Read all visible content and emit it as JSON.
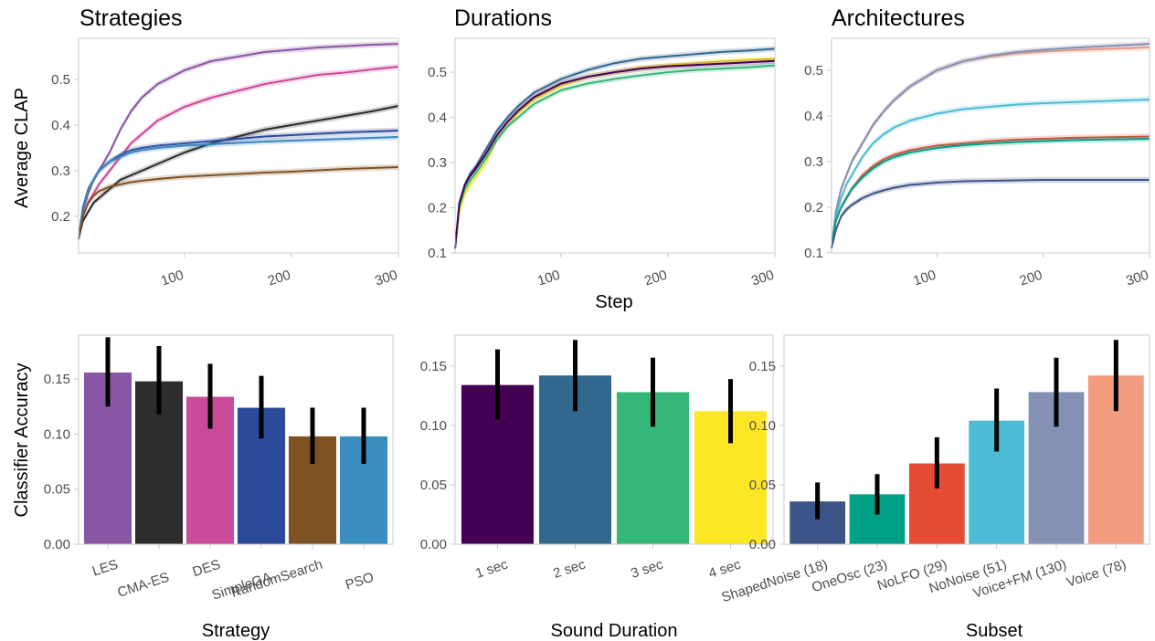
{
  "chart_data": [
    {
      "type": "line",
      "title": "Strategies",
      "ylabel": "Average CLAP",
      "xlabel": "",
      "xlim": [
        1,
        300
      ],
      "ylim": [
        0.12,
        0.59
      ],
      "xticks": [
        100,
        200,
        300
      ],
      "yticks": [
        0.2,
        0.3,
        0.4,
        0.5
      ],
      "legend": "none",
      "x": [
        1,
        5,
        10,
        15,
        20,
        30,
        40,
        50,
        60,
        75,
        100,
        125,
        150,
        175,
        200,
        225,
        250,
        275,
        300
      ],
      "series": [
        {
          "color": "#8b55a5",
          "values": [
            0.15,
            0.21,
            0.25,
            0.28,
            0.3,
            0.34,
            0.39,
            0.43,
            0.46,
            0.49,
            0.52,
            0.54,
            0.55,
            0.56,
            0.565,
            0.57,
            0.573,
            0.576,
            0.578
          ]
        },
        {
          "color": "#cc4a9a",
          "values": [
            0.15,
            0.2,
            0.23,
            0.25,
            0.27,
            0.3,
            0.33,
            0.36,
            0.38,
            0.41,
            0.44,
            0.46,
            0.475,
            0.49,
            0.5,
            0.51,
            0.515,
            0.522,
            0.528
          ]
        },
        {
          "color": "#2b2b2b",
          "values": [
            0.15,
            0.19,
            0.21,
            0.23,
            0.24,
            0.26,
            0.28,
            0.29,
            0.3,
            0.315,
            0.34,
            0.36,
            0.375,
            0.39,
            0.4,
            0.41,
            0.42,
            0.43,
            0.442
          ]
        },
        {
          "color": "#2c4a9a",
          "values": [
            0.15,
            0.22,
            0.26,
            0.28,
            0.3,
            0.32,
            0.335,
            0.345,
            0.35,
            0.355,
            0.36,
            0.365,
            0.37,
            0.375,
            0.378,
            0.381,
            0.384,
            0.386,
            0.388
          ]
        },
        {
          "color": "#3a86bf",
          "values": [
            0.15,
            0.22,
            0.26,
            0.28,
            0.3,
            0.32,
            0.33,
            0.34,
            0.345,
            0.35,
            0.355,
            0.358,
            0.361,
            0.364,
            0.366,
            0.368,
            0.37,
            0.372,
            0.374
          ]
        },
        {
          "color": "#7e5222",
          "values": [
            0.15,
            0.2,
            0.23,
            0.245,
            0.255,
            0.265,
            0.27,
            0.275,
            0.278,
            0.282,
            0.287,
            0.29,
            0.293,
            0.296,
            0.298,
            0.301,
            0.304,
            0.306,
            0.308
          ]
        }
      ]
    },
    {
      "type": "line",
      "title": "Durations",
      "ylabel": "",
      "xlabel": "Step",
      "xlim": [
        1,
        300
      ],
      "ylim": [
        0.1,
        0.575
      ],
      "xticks": [
        100,
        200,
        300
      ],
      "yticks": [
        0.1,
        0.2,
        0.3,
        0.4,
        0.5
      ],
      "legend": "none",
      "x": [
        1,
        5,
        10,
        15,
        20,
        30,
        40,
        50,
        60,
        75,
        100,
        125,
        150,
        175,
        200,
        225,
        250,
        275,
        300
      ],
      "series": [
        {
          "color": "#fde725",
          "values": [
            0.11,
            0.19,
            0.23,
            0.25,
            0.265,
            0.3,
            0.35,
            0.38,
            0.41,
            0.44,
            0.47,
            0.49,
            0.5,
            0.51,
            0.515,
            0.52,
            0.525,
            0.528,
            0.53
          ]
        },
        {
          "color": "#35b779",
          "values": [
            0.11,
            0.2,
            0.24,
            0.26,
            0.275,
            0.31,
            0.35,
            0.38,
            0.4,
            0.43,
            0.46,
            0.475,
            0.485,
            0.493,
            0.5,
            0.505,
            0.508,
            0.511,
            0.515
          ]
        },
        {
          "color": "#31688e",
          "values": [
            0.11,
            0.21,
            0.25,
            0.275,
            0.29,
            0.33,
            0.37,
            0.4,
            0.425,
            0.455,
            0.485,
            0.505,
            0.52,
            0.53,
            0.535,
            0.54,
            0.545,
            0.548,
            0.552
          ]
        },
        {
          "color": "#440154",
          "values": [
            0.11,
            0.21,
            0.25,
            0.27,
            0.285,
            0.32,
            0.36,
            0.39,
            0.415,
            0.445,
            0.475,
            0.49,
            0.5,
            0.508,
            0.513,
            0.516,
            0.519,
            0.522,
            0.525
          ]
        }
      ]
    },
    {
      "type": "line",
      "title": "Architectures",
      "ylabel": "",
      "xlabel": "",
      "xlim": [
        1,
        300
      ],
      "ylim": [
        0.1,
        0.57
      ],
      "xticks": [
        100,
        200,
        300
      ],
      "yticks": [
        0.1,
        0.2,
        0.3,
        0.4,
        0.5
      ],
      "legend": "none",
      "x": [
        1,
        5,
        10,
        15,
        20,
        30,
        40,
        50,
        60,
        75,
        100,
        125,
        150,
        175,
        200,
        225,
        250,
        275,
        300
      ],
      "series": [
        {
          "color": "#f39b7f",
          "values": [
            0.11,
            0.19,
            0.24,
            0.27,
            0.3,
            0.34,
            0.38,
            0.41,
            0.435,
            0.465,
            0.5,
            0.52,
            0.53,
            0.537,
            0.541,
            0.544,
            0.546,
            0.548,
            0.55
          ]
        },
        {
          "color": "#8491b4",
          "values": [
            0.11,
            0.19,
            0.24,
            0.27,
            0.3,
            0.34,
            0.38,
            0.41,
            0.435,
            0.465,
            0.5,
            0.52,
            0.532,
            0.54,
            0.545,
            0.549,
            0.552,
            0.555,
            0.558
          ]
        },
        {
          "color": "#4dbbd5",
          "values": [
            0.11,
            0.18,
            0.22,
            0.25,
            0.27,
            0.31,
            0.34,
            0.36,
            0.375,
            0.39,
            0.405,
            0.415,
            0.42,
            0.425,
            0.428,
            0.43,
            0.432,
            0.434,
            0.436
          ]
        },
        {
          "color": "#e64b35",
          "values": [
            0.11,
            0.17,
            0.2,
            0.22,
            0.24,
            0.27,
            0.29,
            0.305,
            0.315,
            0.325,
            0.335,
            0.34,
            0.345,
            0.348,
            0.35,
            0.352,
            0.353,
            0.354,
            0.355
          ]
        },
        {
          "color": "#00a087",
          "values": [
            0.11,
            0.17,
            0.2,
            0.22,
            0.24,
            0.265,
            0.285,
            0.3,
            0.31,
            0.32,
            0.33,
            0.336,
            0.34,
            0.343,
            0.345,
            0.347,
            0.348,
            0.349,
            0.35
          ]
        },
        {
          "color": "#3c5488",
          "values": [
            0.11,
            0.15,
            0.18,
            0.195,
            0.205,
            0.22,
            0.23,
            0.237,
            0.243,
            0.249,
            0.254,
            0.257,
            0.258,
            0.259,
            0.26,
            0.26,
            0.26,
            0.26,
            0.26
          ]
        }
      ]
    },
    {
      "type": "bar",
      "title": "",
      "xlabel": "Strategy",
      "ylabel": "Classifier Accuracy",
      "ylim": [
        0,
        0.19
      ],
      "yticks": [
        "0.00",
        "0.05",
        "0.10",
        "0.15"
      ],
      "categories": [
        "LES",
        "CMA-ES",
        "DES",
        "SimpleGA",
        "RandomSearch",
        "PSO"
      ],
      "values": [
        0.156,
        0.148,
        0.134,
        0.124,
        0.098,
        0.098
      ],
      "errors": [
        [
          0.125,
          0.188
        ],
        [
          0.118,
          0.18
        ],
        [
          0.105,
          0.164
        ],
        [
          0.096,
          0.153
        ],
        [
          0.073,
          0.124
        ],
        [
          0.073,
          0.124
        ]
      ],
      "colors": [
        "#8b55a5",
        "#2f2c2e",
        "#cc4a9a",
        "#2c4a9a",
        "#7e5222",
        "#3a8ebf"
      ]
    },
    {
      "type": "bar",
      "title": "",
      "xlabel": "Sound Duration",
      "ylabel": "",
      "ylim": [
        0,
        0.176
      ],
      "yticks": [
        "0.00",
        "0.05",
        "0.10",
        "0.15"
      ],
      "categories": [
        "1 sec",
        "2 sec",
        "3 sec",
        "4 sec"
      ],
      "values": [
        0.134,
        0.142,
        0.128,
        0.112
      ],
      "errors": [
        [
          0.105,
          0.164
        ],
        [
          0.112,
          0.172
        ],
        [
          0.099,
          0.157
        ],
        [
          0.085,
          0.139
        ]
      ],
      "colors": [
        "#440154",
        "#31688e",
        "#35b779",
        "#fde725"
      ]
    },
    {
      "type": "bar",
      "title": "",
      "xlabel": "Subset",
      "ylabel": "",
      "ylim": [
        0,
        0.176
      ],
      "yticks": [
        "0.00",
        "0.05",
        "0.10",
        "0.15"
      ],
      "categories": [
        "ShapedNoise (18)",
        "OneOsc (23)",
        "NoLFO (29)",
        "NoNoise (51)",
        "Voice+FM (130)",
        "Voice (78)"
      ],
      "values": [
        0.036,
        0.042,
        0.068,
        0.104,
        0.128,
        0.142
      ],
      "errors": [
        [
          0.021,
          0.052
        ],
        [
          0.025,
          0.059
        ],
        [
          0.047,
          0.09
        ],
        [
          0.078,
          0.131
        ],
        [
          0.099,
          0.157
        ],
        [
          0.112,
          0.172
        ]
      ],
      "colors": [
        "#3c5488",
        "#00a087",
        "#e64b35",
        "#4dbbd5",
        "#8491b4",
        "#f39b7f"
      ]
    }
  ]
}
